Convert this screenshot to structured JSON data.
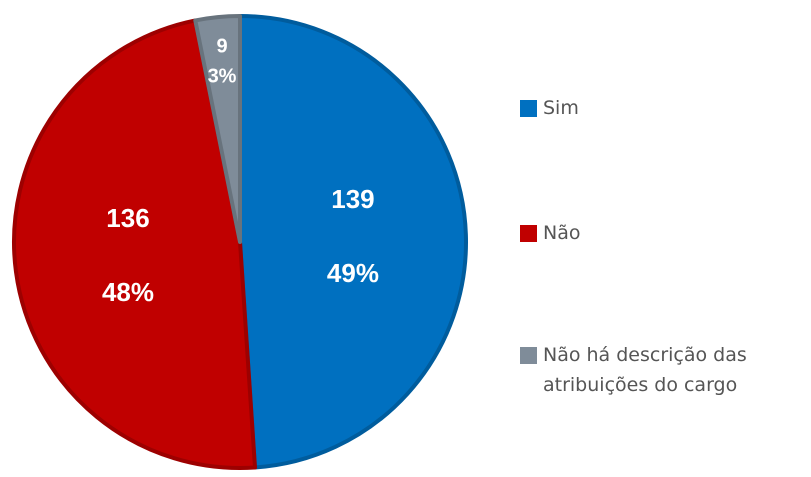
{
  "chart_data": {
    "type": "pie",
    "categories": [
      "Sim",
      "Não",
      "Não há descrição das atribuições do cargo"
    ],
    "values": [
      139,
      136,
      9
    ],
    "percent_labels": [
      "49%",
      "48%",
      "3%"
    ],
    "colors": [
      "#0070c0",
      "#c00000",
      "#7f8c99"
    ],
    "legend": "right"
  }
}
